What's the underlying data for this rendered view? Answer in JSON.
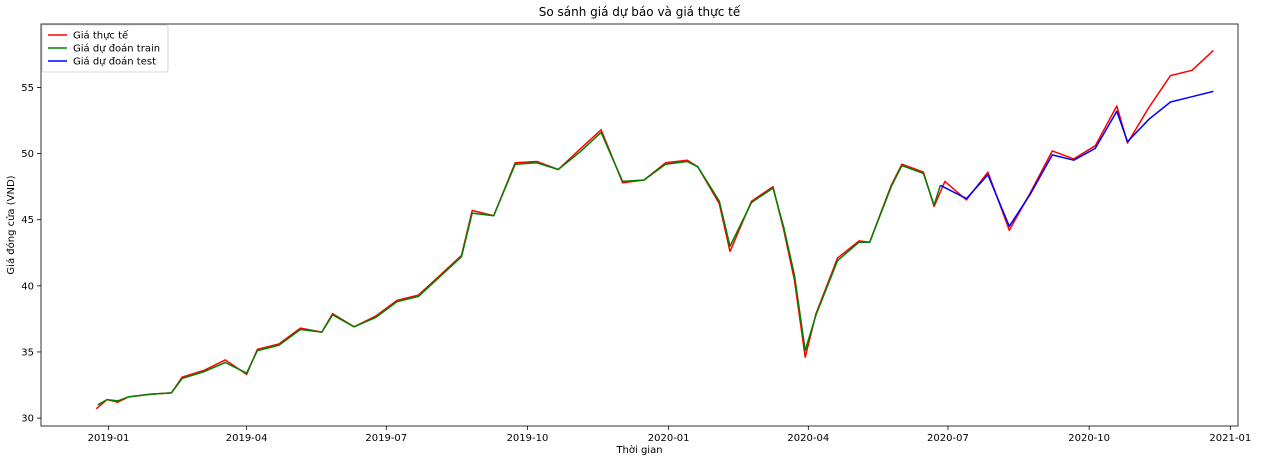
{
  "chart_data": {
    "type": "line",
    "title": "So sánh giá dự báo và giá thực tế",
    "xlabel": "Thời gian",
    "ylabel": "Giá đóng cửa (VND)",
    "xlim": [
      "2018-11-18",
      "2021-01-06"
    ],
    "ylim": [
      29.4,
      59.8
    ],
    "x_ticks": [
      "2019-01",
      "2019-04",
      "2019-07",
      "2019-10",
      "2020-01",
      "2020-04",
      "2020-07",
      "2020-10",
      "2021-01"
    ],
    "y_ticks": [
      30,
      35,
      40,
      45,
      50,
      55
    ],
    "grid": false,
    "legend_position": "top-left",
    "colors": {
      "actual": "#ff0000",
      "train": "#008000",
      "test": "#0000ff"
    },
    "series": [
      {
        "name": "Giá thực tế",
        "color": "#ff0000",
        "points": [
          [
            "2018-12-24",
            30.7
          ],
          [
            "2018-12-31",
            31.4
          ],
          [
            "2019-01-07",
            31.2
          ],
          [
            "2019-01-14",
            31.6
          ],
          [
            "2019-01-28",
            31.8
          ],
          [
            "2019-02-11",
            31.9
          ],
          [
            "2019-02-18",
            33.1
          ],
          [
            "2019-03-04",
            33.6
          ],
          [
            "2019-03-18",
            34.4
          ],
          [
            "2019-04-01",
            33.3
          ],
          [
            "2019-04-08",
            35.2
          ],
          [
            "2019-04-22",
            35.6
          ],
          [
            "2019-05-06",
            36.8
          ],
          [
            "2019-05-20",
            36.5
          ],
          [
            "2019-05-27",
            37.9
          ],
          [
            "2019-06-10",
            36.9
          ],
          [
            "2019-06-24",
            37.7
          ],
          [
            "2019-07-08",
            38.9
          ],
          [
            "2019-07-22",
            39.3
          ],
          [
            "2019-08-05",
            40.8
          ],
          [
            "2019-08-19",
            42.3
          ],
          [
            "2019-08-26",
            45.7
          ],
          [
            "2019-09-09",
            45.3
          ],
          [
            "2019-09-23",
            49.3
          ],
          [
            "2019-10-07",
            49.4
          ],
          [
            "2019-10-21",
            48.8
          ],
          [
            "2019-11-04",
            50.3
          ],
          [
            "2019-11-18",
            51.8
          ],
          [
            "2019-12-02",
            47.8
          ],
          [
            "2019-12-16",
            48.0
          ],
          [
            "2019-12-30",
            49.3
          ],
          [
            "2020-01-13",
            49.5
          ],
          [
            "2020-01-20",
            49.0
          ],
          [
            "2020-02-03",
            46.2
          ],
          [
            "2020-02-10",
            42.6
          ],
          [
            "2020-02-24",
            46.4
          ],
          [
            "2020-03-09",
            47.5
          ],
          [
            "2020-03-16",
            44.2
          ],
          [
            "2020-03-23",
            40.4
          ],
          [
            "2020-03-30",
            34.6
          ],
          [
            "2020-04-06",
            37.9
          ],
          [
            "2020-04-20",
            42.1
          ],
          [
            "2020-05-04",
            43.4
          ],
          [
            "2020-05-11",
            43.3
          ],
          [
            "2020-05-25",
            47.6
          ],
          [
            "2020-06-01",
            49.2
          ],
          [
            "2020-06-15",
            48.6
          ],
          [
            "2020-06-22",
            46.0
          ],
          [
            "2020-06-29",
            47.9
          ],
          [
            "2020-07-13",
            46.5
          ],
          [
            "2020-07-27",
            48.6
          ],
          [
            "2020-08-10",
            44.2
          ],
          [
            "2020-08-24",
            47.1
          ],
          [
            "2020-09-07",
            50.2
          ],
          [
            "2020-09-21",
            49.6
          ],
          [
            "2020-10-05",
            50.6
          ],
          [
            "2020-10-19",
            53.6
          ],
          [
            "2020-10-26",
            50.8
          ],
          [
            "2020-11-09",
            53.5
          ],
          [
            "2020-11-23",
            55.9
          ],
          [
            "2020-12-07",
            56.3
          ],
          [
            "2020-12-21",
            57.8
          ]
        ]
      },
      {
        "name": "Giá dự đoán train",
        "color": "#008000",
        "points": [
          [
            "2018-12-25",
            31.0
          ],
          [
            "2018-12-31",
            31.4
          ],
          [
            "2019-01-07",
            31.3
          ],
          [
            "2019-01-14",
            31.6
          ],
          [
            "2019-01-28",
            31.8
          ],
          [
            "2019-02-11",
            31.9
          ],
          [
            "2019-02-18",
            33.0
          ],
          [
            "2019-03-04",
            33.5
          ],
          [
            "2019-03-18",
            34.2
          ],
          [
            "2019-04-01",
            33.4
          ],
          [
            "2019-04-08",
            35.1
          ],
          [
            "2019-04-22",
            35.5
          ],
          [
            "2019-05-06",
            36.7
          ],
          [
            "2019-05-20",
            36.5
          ],
          [
            "2019-05-27",
            37.8
          ],
          [
            "2019-06-10",
            36.9
          ],
          [
            "2019-06-24",
            37.6
          ],
          [
            "2019-07-08",
            38.8
          ],
          [
            "2019-07-22",
            39.2
          ],
          [
            "2019-08-05",
            40.7
          ],
          [
            "2019-08-19",
            42.2
          ],
          [
            "2019-08-26",
            45.5
          ],
          [
            "2019-09-09",
            45.3
          ],
          [
            "2019-09-23",
            49.2
          ],
          [
            "2019-10-07",
            49.3
          ],
          [
            "2019-10-21",
            48.8
          ],
          [
            "2019-11-04",
            50.1
          ],
          [
            "2019-11-18",
            51.6
          ],
          [
            "2019-12-02",
            47.9
          ],
          [
            "2019-12-16",
            48.0
          ],
          [
            "2019-12-30",
            49.2
          ],
          [
            "2020-01-13",
            49.4
          ],
          [
            "2020-01-20",
            49.0
          ],
          [
            "2020-02-03",
            46.4
          ],
          [
            "2020-02-10",
            43.0
          ],
          [
            "2020-02-24",
            46.3
          ],
          [
            "2020-03-09",
            47.4
          ],
          [
            "2020-03-16",
            44.4
          ],
          [
            "2020-03-23",
            40.8
          ],
          [
            "2020-03-30",
            35.1
          ],
          [
            "2020-04-06",
            37.8
          ],
          [
            "2020-04-20",
            41.9
          ],
          [
            "2020-05-04",
            43.3
          ],
          [
            "2020-05-11",
            43.3
          ],
          [
            "2020-05-25",
            47.5
          ],
          [
            "2020-06-01",
            49.1
          ],
          [
            "2020-06-15",
            48.5
          ],
          [
            "2020-06-22",
            46.1
          ],
          [
            "2020-06-26",
            47.6
          ]
        ]
      },
      {
        "name": "Giá dự đoán test",
        "color": "#0000ff",
        "points": [
          [
            "2020-06-26",
            47.6
          ],
          [
            "2020-07-13",
            46.6
          ],
          [
            "2020-07-27",
            48.4
          ],
          [
            "2020-08-10",
            44.5
          ],
          [
            "2020-08-24",
            47.0
          ],
          [
            "2020-09-07",
            49.9
          ],
          [
            "2020-09-21",
            49.5
          ],
          [
            "2020-10-05",
            50.4
          ],
          [
            "2020-10-19",
            53.2
          ],
          [
            "2020-10-26",
            50.9
          ],
          [
            "2020-11-09",
            52.6
          ],
          [
            "2020-11-23",
            53.9
          ],
          [
            "2020-12-07",
            54.3
          ],
          [
            "2020-12-21",
            54.7
          ]
        ]
      }
    ]
  }
}
